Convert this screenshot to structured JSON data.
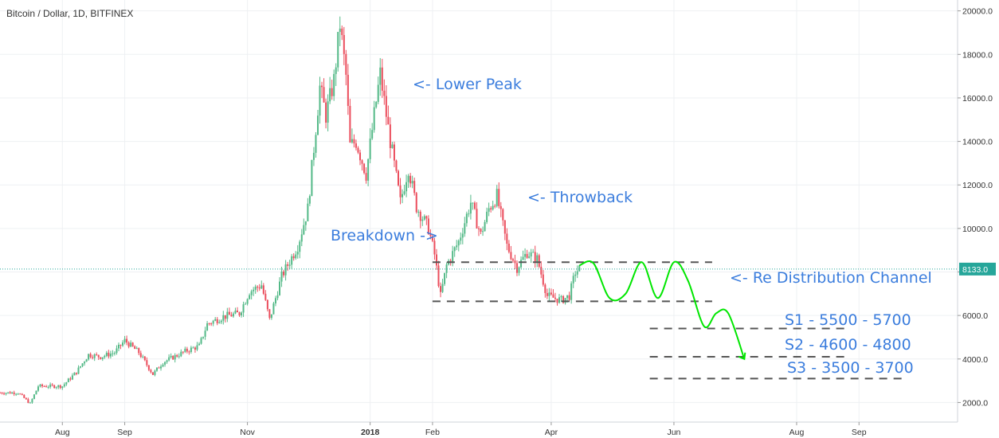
{
  "colors": {
    "up": "#53b987",
    "down": "#eb4d5c",
    "annotation": "#3b7ddd",
    "drawing": "#00e600",
    "dashed": "#555555",
    "grid": "#eef0f3",
    "price_line": "#26a69a"
  },
  "chart_data": {
    "type": "candlestick",
    "title": "Bitcoin / Dollar, 1D, BITFINEX",
    "ylim": [
      1100,
      20500
    ],
    "y_ticks": [
      "2000.0",
      "4000.0",
      "6000.0",
      "8000.0",
      "10000.0",
      "12000.0",
      "14000.0",
      "16000.0",
      "18000.0",
      "20000.0"
    ],
    "y_tick_values": [
      2000,
      4000,
      6000,
      8000,
      10000,
      12000,
      14000,
      16000,
      18000,
      20000
    ],
    "x_range": [
      "2017-07-01",
      "2018-10-20"
    ],
    "x_ticks": [
      {
        "label": "Aug",
        "date": "2017-08-01",
        "bold": false
      },
      {
        "label": "Sep",
        "date": "2017-09-01",
        "bold": false
      },
      {
        "label": "Nov",
        "date": "2017-11-01",
        "bold": false
      },
      {
        "label": "2018",
        "date": "2018-01-01",
        "bold": true
      },
      {
        "label": "Feb",
        "date": "2018-02-01",
        "bold": false
      },
      {
        "label": "Apr",
        "date": "2018-04-01",
        "bold": false
      },
      {
        "label": "Jun",
        "date": "2018-06-01",
        "bold": false
      },
      {
        "label": "Aug",
        "date": "2018-08-01",
        "bold": false
      },
      {
        "label": "Sep",
        "date": "2018-09-01",
        "bold": false
      }
    ],
    "close_path": [
      [
        "2017-07-01",
        2450
      ],
      [
        "2017-07-10",
        2450
      ],
      [
        "2017-07-16",
        1950
      ],
      [
        "2017-07-20",
        2750
      ],
      [
        "2017-08-01",
        2750
      ],
      [
        "2017-08-08",
        3400
      ],
      [
        "2017-08-14",
        4200
      ],
      [
        "2017-08-20",
        4100
      ],
      [
        "2017-08-27",
        4300
      ],
      [
        "2017-09-01",
        4850
      ],
      [
        "2017-09-08",
        4300
      ],
      [
        "2017-09-15",
        3300
      ],
      [
        "2017-09-20",
        3850
      ],
      [
        "2017-10-01",
        4350
      ],
      [
        "2017-10-08",
        4600
      ],
      [
        "2017-10-12",
        5600
      ],
      [
        "2017-10-20",
        5950
      ],
      [
        "2017-10-28",
        6100
      ],
      [
        "2017-11-02",
        7100
      ],
      [
        "2017-11-08",
        7400
      ],
      [
        "2017-11-12",
        5800
      ],
      [
        "2017-11-18",
        7800
      ],
      [
        "2017-11-26",
        9200
      ],
      [
        "2017-12-01",
        10900
      ],
      [
        "2017-12-07",
        16500
      ],
      [
        "2017-12-10",
        15200
      ],
      [
        "2017-12-14",
        16800
      ],
      [
        "2017-12-17",
        19400
      ],
      [
        "2017-12-20",
        17000
      ],
      [
        "2017-12-22",
        13800
      ],
      [
        "2017-12-25",
        14000
      ],
      [
        "2017-12-30",
        12500
      ],
      [
        "2018-01-03",
        15200
      ],
      [
        "2018-01-06",
        17100
      ],
      [
        "2018-01-10",
        14600
      ],
      [
        "2018-01-16",
        11200
      ],
      [
        "2018-01-20",
        12800
      ],
      [
        "2018-01-24",
        11000
      ],
      [
        "2018-01-30",
        10000
      ],
      [
        "2018-02-02",
        8800
      ],
      [
        "2018-02-05",
        6900
      ],
      [
        "2018-02-08",
        8300
      ],
      [
        "2018-02-14",
        9400
      ],
      [
        "2018-02-20",
        11200
      ],
      [
        "2018-02-25",
        9700
      ],
      [
        "2018-03-01",
        10900
      ],
      [
        "2018-03-05",
        11500
      ],
      [
        "2018-03-10",
        9200
      ],
      [
        "2018-03-15",
        8200
      ],
      [
        "2018-03-20",
        8900
      ],
      [
        "2018-03-25",
        8600
      ],
      [
        "2018-03-30",
        6900
      ],
      [
        "2018-04-06",
        6700
      ],
      [
        "2018-04-10",
        6900
      ],
      [
        "2018-04-13",
        8000
      ],
      [
        "2018-04-15",
        8133
      ]
    ],
    "levels": [
      {
        "name": "channel-top",
        "price": 8450,
        "from": "2018-02-01",
        "to": "2018-06-20"
      },
      {
        "name": "channel-bottom",
        "price": 6650,
        "from": "2018-02-01",
        "to": "2018-06-20"
      },
      {
        "name": "s1",
        "price": 5400,
        "from": "2018-05-20",
        "to": "2018-08-25"
      },
      {
        "name": "s2",
        "price": 4100,
        "from": "2018-05-20",
        "to": "2018-08-25"
      },
      {
        "name": "s3",
        "price": 3100,
        "from": "2018-05-20",
        "to": "2018-09-25"
      }
    ],
    "projection": [
      [
        "2018-04-15",
        8300
      ],
      [
        "2018-04-22",
        8400
      ],
      [
        "2018-04-30",
        6800
      ],
      [
        "2018-05-08",
        7000
      ],
      [
        "2018-05-16",
        8450
      ],
      [
        "2018-05-24",
        6800
      ],
      [
        "2018-06-01",
        8450
      ],
      [
        "2018-06-08",
        7600
      ],
      [
        "2018-06-16",
        5500
      ],
      [
        "2018-06-22",
        6100
      ],
      [
        "2018-06-28",
        6100
      ],
      [
        "2018-07-06",
        4000
      ]
    ],
    "current_price": 8133,
    "current_price_label": "8133.0"
  },
  "annotations": {
    "lower_peak": "<- Lower Peak",
    "throwback": "<- Throwback",
    "breakdown": "Breakdown ->",
    "redistribution": "<- Re Distribution Channel",
    "s1": "S1 - 5500 - 5700",
    "s2": "S2 - 4600 - 4800",
    "s3": "S3 - 3500 - 3700"
  }
}
